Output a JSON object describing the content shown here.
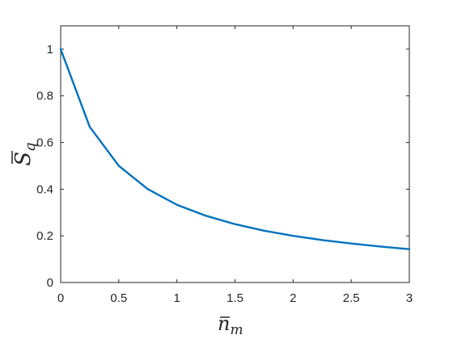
{
  "chart_data": {
    "type": "line",
    "title": "",
    "xlabel": "n",
    "xlabel_sub": "m",
    "ylabel": "S",
    "ylabel_sub": "q",
    "xlim": [
      0,
      3
    ],
    "ylim": [
      0,
      1.1
    ],
    "x_ticks": [
      0,
      0.5,
      1,
      1.5,
      2,
      2.5,
      3
    ],
    "x_tick_labels": [
      "0",
      "0.5",
      "1",
      "1.5",
      "2",
      "2.5",
      "3"
    ],
    "y_ticks": [
      0,
      0.2,
      0.4,
      0.6,
      0.8,
      1
    ],
    "y_tick_labels": [
      "0",
      "0.2",
      "0.4",
      "0.6",
      "0.8",
      "1"
    ],
    "grid": false,
    "series": [
      {
        "color": "#0072BD",
        "x": [
          0,
          0.25,
          0.5,
          0.75,
          1,
          1.25,
          1.5,
          1.75,
          2,
          2.25,
          2.5,
          2.75,
          3
        ],
        "y": [
          1,
          0.667,
          0.5,
          0.4,
          0.333,
          0.286,
          0.25,
          0.222,
          0.2,
          0.182,
          0.167,
          0.154,
          0.143
        ]
      }
    ]
  }
}
